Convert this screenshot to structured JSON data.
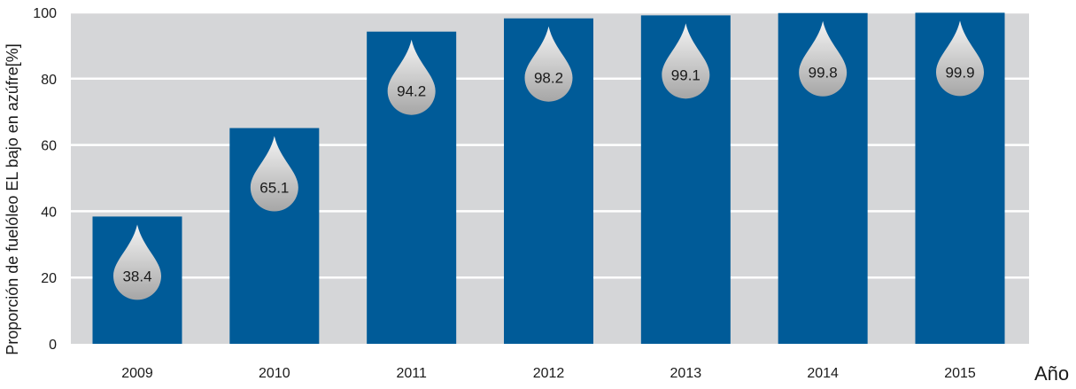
{
  "chart_data": {
    "type": "bar",
    "categories": [
      "2009",
      "2010",
      "2011",
      "2012",
      "2013",
      "2014",
      "2015"
    ],
    "values": [
      38.4,
      65.1,
      94.2,
      98.2,
      99.1,
      99.8,
      99.9
    ],
    "value_labels": [
      "38.4",
      "65.1",
      "94.2",
      "98.2",
      "99.1",
      "99.8",
      "99.9"
    ],
    "ylabel": "Proporción de fuelóleo EL bajo en azúfre[%]",
    "xlabel": "Año",
    "ylim": [
      0,
      100
    ],
    "yticks": [
      "0",
      "20",
      "40",
      "60",
      "80",
      "100"
    ],
    "grid": true,
    "colors": {
      "bar": "#005b98",
      "plot_background": "#d5d6d8",
      "gridline": "#ffffff",
      "drop_light": "#f4f4f4",
      "drop_dark": "#a6a6a6"
    }
  }
}
